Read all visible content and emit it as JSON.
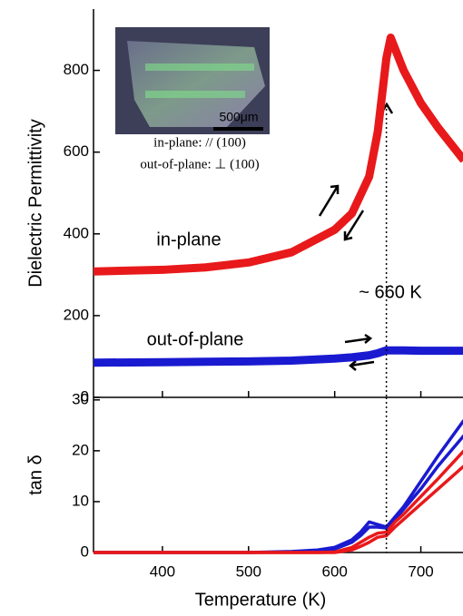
{
  "chart_data": [
    {
      "type": "line",
      "ylabel": "Dielectric Permittivity",
      "x": [
        320,
        400,
        450,
        500,
        550,
        600,
        620,
        640,
        650,
        660,
        665,
        680,
        700,
        720,
        750
      ],
      "series": [
        {
          "name": "in-plane",
          "color": "#e8191b",
          "values": [
            308,
            312,
            318,
            330,
            355,
            410,
            450,
            540,
            650,
            830,
            880,
            800,
            720,
            660,
            580
          ]
        },
        {
          "name": "out-of-plane",
          "color": "#1a1ad0",
          "values": [
            85,
            86,
            87,
            88,
            90,
            95,
            98,
            103,
            108,
            115,
            115,
            115,
            114,
            114,
            114
          ]
        }
      ],
      "xlim": [
        320,
        750
      ],
      "xticks": [
        400,
        500,
        600,
        700
      ],
      "ylim": [
        0,
        950
      ],
      "yticks": [
        0,
        200,
        400,
        600,
        800
      ],
      "vline": 660,
      "annotations": [
        "~ 660 K",
        "in-plane: // (100)",
        "out-of-plane: ⊥ (100)",
        "500μm"
      ]
    },
    {
      "type": "line",
      "ylabel": "tan δ",
      "xlabel": "Temperature (K)",
      "x": [
        320,
        500,
        550,
        580,
        600,
        620,
        630,
        640,
        650,
        660,
        670,
        680,
        700,
        720,
        750
      ],
      "series": [
        {
          "color": "#1a1ad0",
          "values": [
            0,
            0,
            0.2,
            0.5,
            1,
            2.5,
            4,
            6,
            5.5,
            5,
            7,
            9,
            14,
            19,
            26
          ]
        },
        {
          "color": "#1a1ad0",
          "values": [
            0,
            0,
            0.1,
            0.3,
            0.7,
            2,
            3.3,
            5,
            5,
            4.8,
            6.5,
            8.5,
            12.5,
            17,
            23
          ]
        },
        {
          "color": "#e8191b",
          "values": [
            0,
            0,
            0,
            0,
            0.1,
            1,
            2,
            3,
            3.8,
            4,
            6,
            7.5,
            11,
            14.5,
            20
          ]
        },
        {
          "color": "#e8191b",
          "values": [
            0,
            0,
            0,
            0,
            0,
            0.5,
            1.2,
            2,
            3,
            3.3,
            5,
            6.5,
            9.5,
            12.5,
            17
          ]
        }
      ],
      "xlim": [
        320,
        750
      ],
      "xticks": [
        400,
        500,
        600,
        700
      ],
      "ylim": [
        0,
        30.5
      ],
      "yticks": [
        0,
        10,
        20,
        30
      ],
      "vline": 660
    }
  ]
}
